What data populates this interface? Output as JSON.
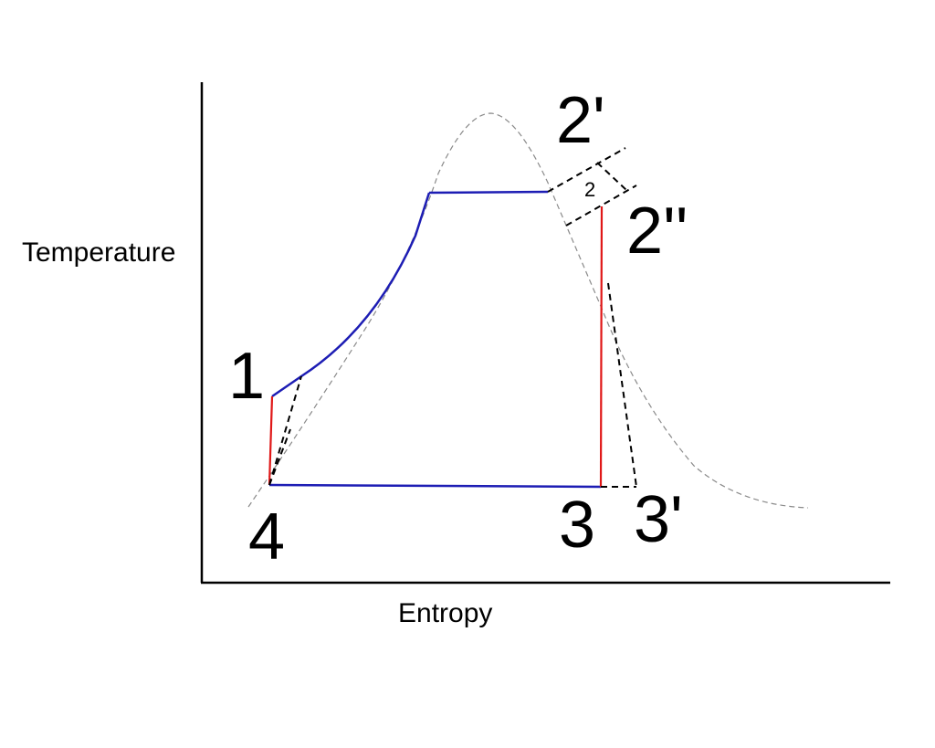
{
  "axes": {
    "x_label": "Entropy",
    "y_label": "Temperature"
  },
  "points": {
    "p1": "1",
    "p2_prime": "2'",
    "p2_double_prime": "2''",
    "p3": "3",
    "p3_prime": "3'",
    "p4": "4"
  },
  "inner_label": "2",
  "colors": {
    "cycle_line": "#1d1db4",
    "isentropic_line": "#e01818",
    "actual_process": "#000000",
    "saturation_dome": "#8a8a8a"
  }
}
